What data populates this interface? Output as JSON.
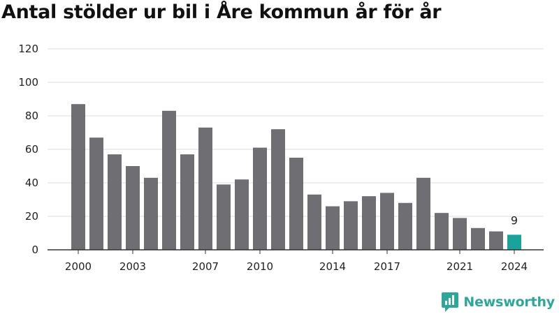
{
  "chart_data": {
    "type": "bar",
    "title": "Antal stölder ur bil i Åre kommun år för år",
    "categories": [
      "2000",
      "2001",
      "2002",
      "2003",
      "2004",
      "2005",
      "2006",
      "2007",
      "2008",
      "2009",
      "2010",
      "2011",
      "2012",
      "2013",
      "2014",
      "2015",
      "2016",
      "2017",
      "2018",
      "2019",
      "2020",
      "2021",
      "2022",
      "2023",
      "2024"
    ],
    "values": [
      87,
      67,
      57,
      50,
      43,
      83,
      57,
      73,
      39,
      42,
      61,
      72,
      55,
      33,
      26,
      29,
      32,
      34,
      28,
      43,
      22,
      19,
      13,
      11,
      9
    ],
    "xticks": [
      "2000",
      "2003",
      "2007",
      "2010",
      "2014",
      "2017",
      "2021",
      "2024"
    ],
    "yticks": [
      "0",
      "20",
      "40",
      "60",
      "80",
      "100",
      "120"
    ],
    "ylim": [
      0,
      120
    ],
    "grid": true,
    "highlight": {
      "category": "2024",
      "label": "9"
    },
    "colors": {
      "bar": "#6f6e73",
      "highlight": "#1aa39b",
      "grid": "#dddddd",
      "axis": "#333333"
    }
  },
  "brand": {
    "name": "Newsworthy",
    "icon": "newsworthy-logo-icon",
    "color": "#2ea79a"
  }
}
